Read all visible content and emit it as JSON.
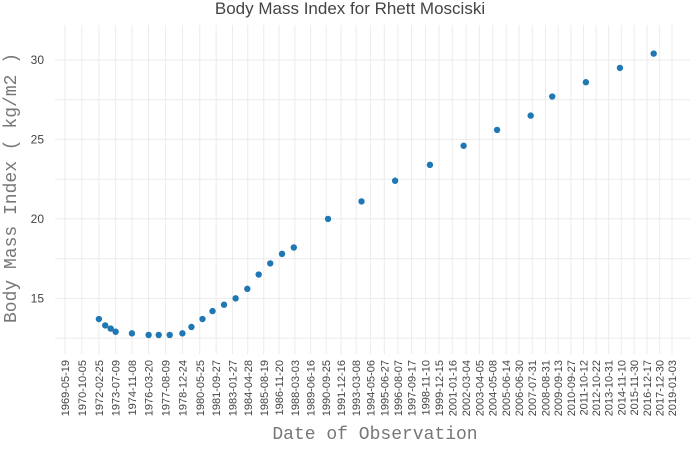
{
  "chart_data": {
    "type": "scatter",
    "title": "Body Mass Index for Rhett Mosciski",
    "xlabel": "Date of Observation",
    "ylabel": "Body Mass Index ( kg/m2 )",
    "x_axis_type": "date",
    "ylim": [
      11.5,
      32.2
    ],
    "yticks": [
      15,
      20,
      25,
      30
    ],
    "xticks": [
      "1969-05-19",
      "1970-10-05",
      "1972-02-25",
      "1973-07-09",
      "1974-11-08",
      "1976-03-20",
      "1977-08-09",
      "1978-12-24",
      "1980-05-25",
      "1981-09-27",
      "1983-01-27",
      "1984-04-28",
      "1985-08-19",
      "1986-11-20",
      "1988-03-03",
      "1989-06-16",
      "1990-09-25",
      "1991-12-16",
      "1993-03-08",
      "1994-05-06",
      "1995-06-27",
      "1996-08-07",
      "1997-09-17",
      "1998-11-10",
      "1999-12-15",
      "2001-01-16",
      "2002-03-04",
      "2003-04-05",
      "2004-05-08",
      "2005-06-14",
      "2006-06-30",
      "2007-07-31",
      "2008-08-31",
      "2009-09-13",
      "2010-09-27",
      "2011-10-12",
      "2012-10-22",
      "2013-10-31",
      "2014-11-10",
      "2015-11-30",
      "2016-12-17",
      "2017-12-30",
      "2019-01-03"
    ],
    "grid": true,
    "legend": "none",
    "marker_color": "#1f77b4",
    "grid_color": "#ebebeb",
    "points": [
      {
        "x": "1972-02-25",
        "y": 13.7
      },
      {
        "x": "1972-09-01",
        "y": 13.3
      },
      {
        "x": "1973-02-10",
        "y": 13.1
      },
      {
        "x": "1973-07-09",
        "y": 12.9
      },
      {
        "x": "1974-11-08",
        "y": 12.8
      },
      {
        "x": "1976-03-20",
        "y": 12.7
      },
      {
        "x": "1977-01-15",
        "y": 12.7
      },
      {
        "x": "1977-12-10",
        "y": 12.7
      },
      {
        "x": "1978-12-24",
        "y": 12.8
      },
      {
        "x": "1979-09-20",
        "y": 13.2
      },
      {
        "x": "1980-08-15",
        "y": 13.7
      },
      {
        "x": "1981-06-10",
        "y": 14.2
      },
      {
        "x": "1982-05-20",
        "y": 14.6
      },
      {
        "x": "1983-05-01",
        "y": 15.0
      },
      {
        "x": "1984-04-15",
        "y": 15.6
      },
      {
        "x": "1985-03-20",
        "y": 16.5
      },
      {
        "x": "1986-02-28",
        "y": 17.2
      },
      {
        "x": "1987-02-15",
        "y": 17.8
      },
      {
        "x": "1988-02-01",
        "y": 18.2
      },
      {
        "x": "1990-11-20",
        "y": 20.0
      },
      {
        "x": "1993-08-15",
        "y": 21.1
      },
      {
        "x": "1996-05-15",
        "y": 22.4
      },
      {
        "x": "1999-03-20",
        "y": 23.4
      },
      {
        "x": "2001-12-20",
        "y": 24.6
      },
      {
        "x": "2004-09-15",
        "y": 25.6
      },
      {
        "x": "2007-06-15",
        "y": 26.5
      },
      {
        "x": "2009-03-20",
        "y": 27.7
      },
      {
        "x": "2011-12-20",
        "y": 28.6
      },
      {
        "x": "2014-10-01",
        "y": 29.5
      },
      {
        "x": "2017-07-05",
        "y": 30.4
      }
    ]
  }
}
